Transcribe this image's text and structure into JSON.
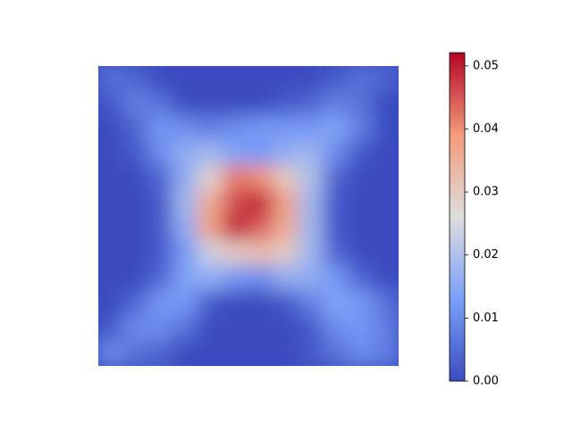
{
  "chart_data": {
    "type": "heatmap",
    "z": [
      [
        0.006,
        0.004,
        0,
        0,
        0,
        0,
        0,
        0,
        0,
        0.002,
        0.006,
        0.004
      ],
      [
        0.002,
        0.008,
        0.006,
        0,
        0,
        0,
        0,
        0.002,
        0.004,
        0.008,
        0.006,
        0
      ],
      [
        0,
        0.004,
        0.012,
        0.01,
        0.008,
        0.01,
        0.012,
        0.012,
        0.012,
        0.014,
        0.008,
        0
      ],
      [
        0,
        0.002,
        0.01,
        0.016,
        0.018,
        0.014,
        0.012,
        0.016,
        0.018,
        0.01,
        0.002,
        0
      ],
      [
        0,
        0,
        0.004,
        0.016,
        0.028,
        0.042,
        0.04,
        0.03,
        0.02,
        0.004,
        0,
        0
      ],
      [
        0,
        0,
        0.002,
        0.018,
        0.036,
        0.046,
        0.05,
        0.038,
        0.018,
        0.002,
        0,
        0
      ],
      [
        0,
        0,
        0.002,
        0.016,
        0.038,
        0.05,
        0.044,
        0.036,
        0.018,
        0.002,
        0,
        0
      ],
      [
        0,
        0,
        0.002,
        0.012,
        0.024,
        0.03,
        0.032,
        0.03,
        0.018,
        0.004,
        0,
        0
      ],
      [
        0,
        0,
        0.004,
        0.014,
        0.016,
        0.012,
        0.01,
        0.016,
        0.016,
        0.012,
        0.004,
        0
      ],
      [
        0,
        0.004,
        0.012,
        0.012,
        0.002,
        0,
        0,
        0.002,
        0.008,
        0.014,
        0.012,
        0.006
      ],
      [
        0.002,
        0.01,
        0.01,
        0.006,
        0,
        0,
        0,
        0,
        0.002,
        0.01,
        0.012,
        0.008
      ],
      [
        0.01,
        0.006,
        0.004,
        0,
        0,
        0,
        0,
        0,
        0.002,
        0.006,
        0.01,
        0.008
      ]
    ],
    "colormap": "coolwarm",
    "clim": [
      0,
      0.0521
    ],
    "cticks": [
      {
        "value": 0,
        "label": "0.00"
      },
      {
        "value": 0.01,
        "label": "0.01"
      },
      {
        "value": 0.02,
        "label": "0.02"
      },
      {
        "value": 0.03,
        "label": "0.03"
      },
      {
        "value": 0.04,
        "label": "0.04"
      },
      {
        "value": 0.05,
        "label": "0.05"
      }
    ]
  }
}
